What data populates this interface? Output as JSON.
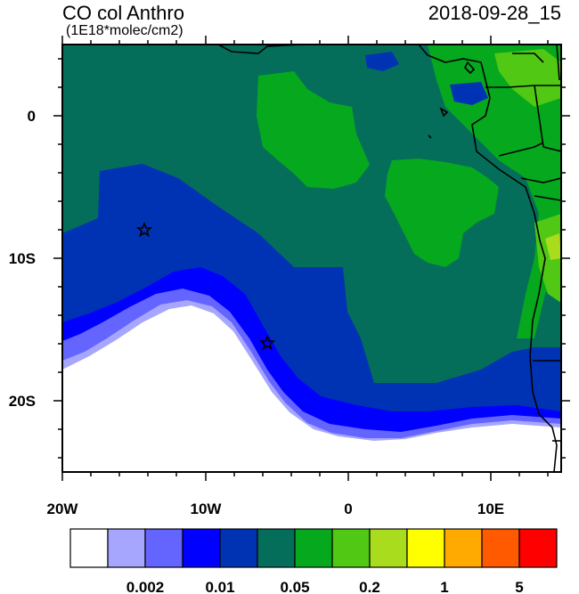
{
  "title": "CO col Anthro",
  "units": "(1E18*molec/cm2)",
  "timestamp": "2018-09-28_15",
  "x_axis": {
    "ticks": [
      "20W",
      "10W",
      "0",
      "10E"
    ]
  },
  "y_axis": {
    "ticks": [
      "0",
      "10S",
      "20S"
    ]
  },
  "colorbar": {
    "colors": [
      "#ffffff",
      "#a6a6ff",
      "#6464ff",
      "#0000ff",
      "#0032b4",
      "#046e5a",
      "#06a81e",
      "#50c814",
      "#aadc1e",
      "#ffff00",
      "#ffaa00",
      "#ff5a00",
      "#ff0000"
    ],
    "labels": [
      "0.002",
      "0.01",
      "0.05",
      "0.2",
      "1",
      "5"
    ]
  },
  "map": {
    "region": "West Africa / South Atlantic",
    "markers": [
      "star-marker",
      "star-marker"
    ]
  }
}
